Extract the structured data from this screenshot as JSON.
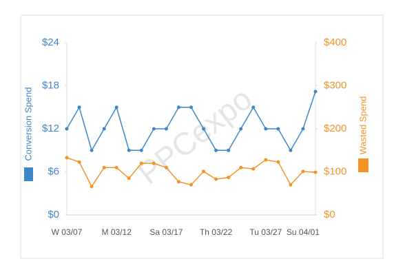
{
  "chart_data": {
    "type": "line",
    "watermark": "PPCexpo",
    "categories": [
      "W 03/07",
      null,
      null,
      null,
      "M 03/12",
      null,
      null,
      null,
      "Sa 03/17",
      null,
      null,
      null,
      "Th 03/22",
      null,
      null,
      null,
      "Tu 03/27",
      null,
      null,
      "Su 04/01",
      null
    ],
    "series": [
      {
        "name": "Conversion Spend",
        "color": "#3f86c8",
        "axis": "y",
        "values": [
          12,
          15,
          9,
          12,
          15,
          9,
          9,
          12,
          12,
          15,
          15,
          12,
          9,
          9,
          12,
          15,
          12,
          12,
          9,
          12,
          17.2
        ]
      },
      {
        "name": "Wasted Spend",
        "color": "#f39325",
        "axis": "y2",
        "values": [
          133,
          123,
          66,
          110,
          110,
          85,
          120,
          120,
          110,
          77,
          70,
          101,
          83,
          87,
          110,
          107,
          128,
          123,
          70,
          101,
          99
        ]
      }
    ],
    "ylim": [
      0,
      24
    ],
    "yticks": [
      {
        "value": 0,
        "label": "$0"
      },
      {
        "value": 6,
        "label": "$6"
      },
      {
        "value": 12,
        "label": "$12"
      },
      {
        "value": 18,
        "label": "$18"
      },
      {
        "value": 24,
        "label": "$24"
      }
    ],
    "y2lim": [
      0,
      400
    ],
    "y2ticks": [
      {
        "value": 0,
        "label": "$0"
      },
      {
        "value": 100,
        "label": "$100"
      },
      {
        "value": 200,
        "label": "$200"
      },
      {
        "value": 300,
        "label": "$300"
      },
      {
        "value": 400,
        "label": "$400"
      }
    ]
  }
}
